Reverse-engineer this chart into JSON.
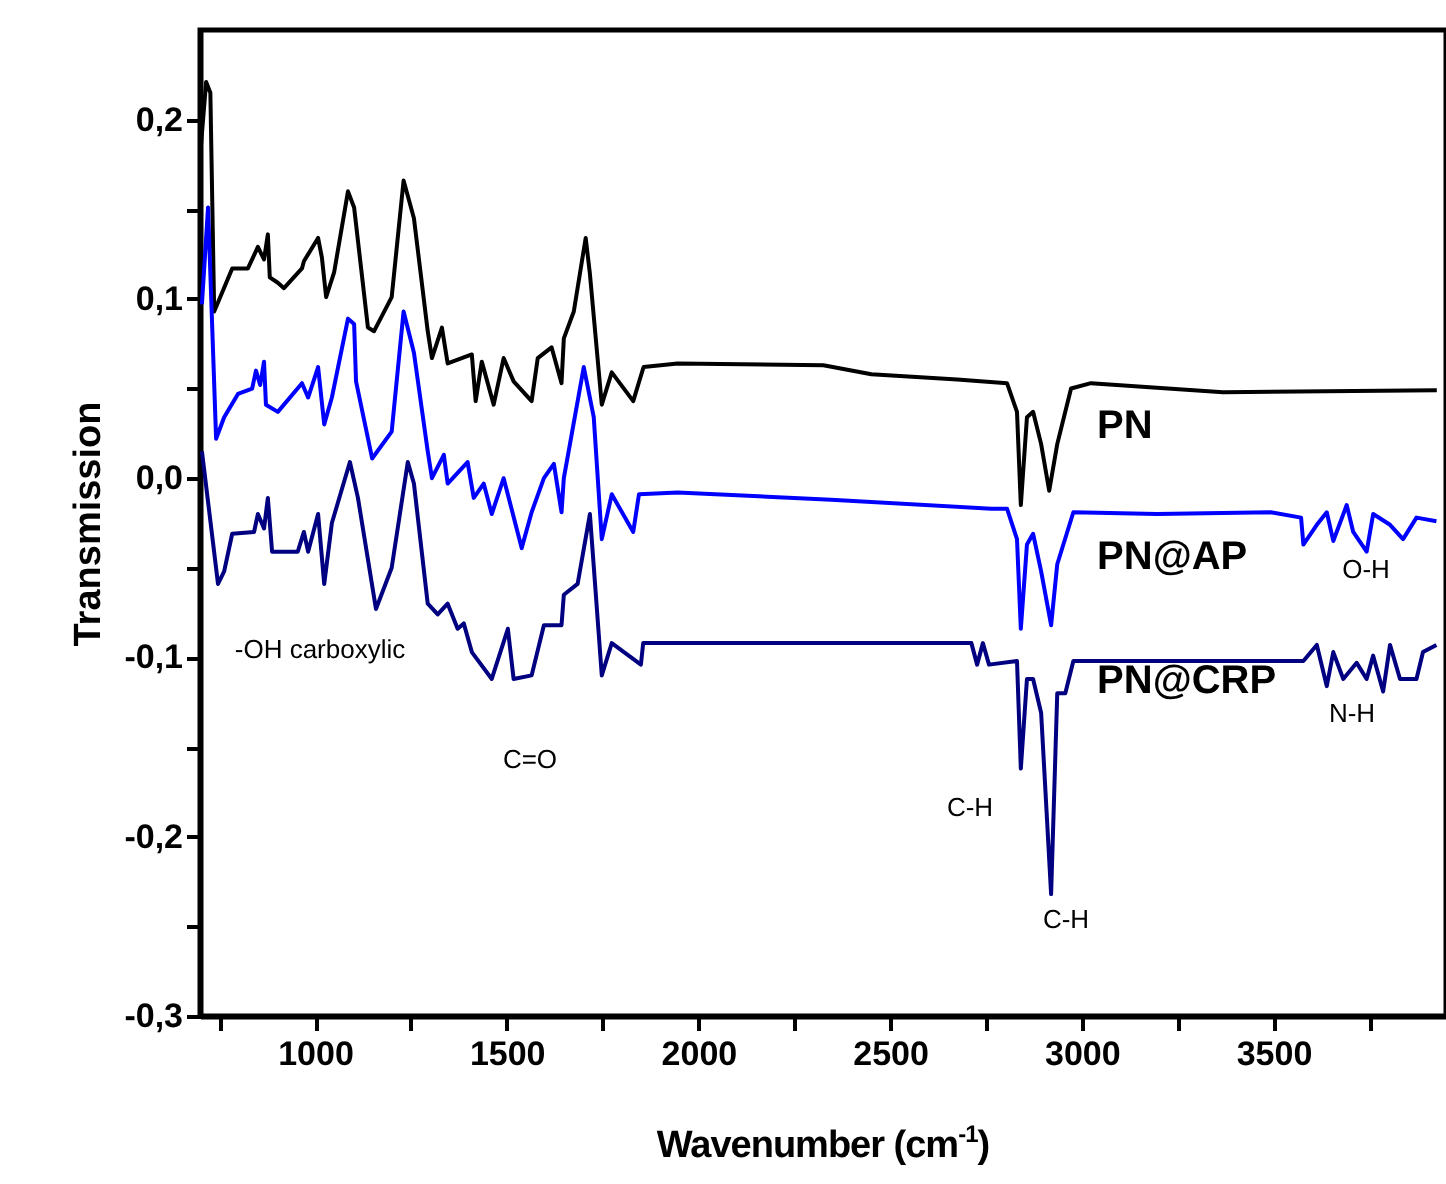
{
  "chart_data": {
    "type": "line",
    "xlabel": "Wavenumber (cm$^{-1}$)",
    "ylabel": "Transmission",
    "xlim": [
      700,
      3950
    ],
    "ylim": [
      -0.3,
      0.25
    ],
    "xticks": [
      {
        "value": 750,
        "label": null
      },
      1000,
      {
        "value": 1250,
        "label": null
      },
      1500,
      {
        "value": 1750,
        "label": null
      },
      2000,
      {
        "value": 2250,
        "label": null
      },
      2500,
      {
        "value": 2750,
        "label": null
      },
      3000,
      {
        "value": 3250,
        "label": null
      },
      3500,
      {
        "value": 3750,
        "label": null
      }
    ],
    "yticks": [
      {
        "value": -0.3,
        "label": "-0,3"
      },
      {
        "value": -0.25,
        "label": null
      },
      {
        "value": -0.2,
        "label": "-0,2"
      },
      {
        "value": -0.15,
        "label": null
      },
      {
        "value": -0.1,
        "label": "-0,1"
      },
      {
        "value": -0.05,
        "label": null
      },
      {
        "value": 0,
        "label": "0,0"
      },
      {
        "value": 0.05,
        "label": null
      },
      {
        "value": 0.1,
        "label": "0,1"
      },
      {
        "value": 0.15,
        "label": null
      },
      {
        "value": 0.2,
        "label": "0,2"
      }
    ],
    "series": [
      {
        "name": "PN",
        "color": "#000000",
        "x": [
          700,
          716,
          727,
          737,
          784,
          825,
          851,
          867,
          877,
          882,
          903,
          919,
          966,
          971,
          1008,
          1018,
          1029,
          1050,
          1086,
          1102,
          1138,
          1154,
          1200,
          1231,
          1258,
          1294,
          1305,
          1331,
          1346,
          1409,
          1419,
          1435,
          1466,
          1492,
          1518,
          1565,
          1581,
          1617,
          1643,
          1649,
          1675,
          1706,
          1717,
          1748,
          1774,
          1830,
          1857,
          1946,
          2326,
          2451,
          2675,
          2805,
          2831,
          2841,
          2857,
          2873,
          2894,
          2915,
          2936,
          2972,
          3024,
          3368,
          3926
        ],
        "values": [
          0.179,
          0.221,
          0.215,
          0.093,
          0.117,
          0.117,
          0.129,
          0.122,
          0.136,
          0.112,
          0.109,
          0.106,
          0.117,
          0.121,
          0.134,
          0.123,
          0.101,
          0.115,
          0.16,
          0.151,
          0.084,
          0.082,
          0.101,
          0.166,
          0.145,
          0.082,
          0.067,
          0.084,
          0.064,
          0.069,
          0.043,
          0.065,
          0.041,
          0.067,
          0.054,
          0.043,
          0.067,
          0.073,
          0.053,
          0.078,
          0.093,
          0.134,
          0.114,
          0.041,
          0.059,
          0.043,
          0.062,
          0.064,
          0.063,
          0.058,
          0.055,
          0.053,
          0.037,
          -0.015,
          0.034,
          0.037,
          0.019,
          -0.007,
          0.019,
          0.05,
          0.053,
          0.048,
          0.049
        ]
      },
      {
        "name": "PN@AP",
        "color": "#0000ff",
        "x": [
          705,
          721,
          742,
          763,
          799,
          836,
          846,
          857,
          867,
          872,
          903,
          966,
          982,
          1008,
          1024,
          1044,
          1086,
          1102,
          1107,
          1149,
          1200,
          1231,
          1258,
          1294,
          1305,
          1336,
          1346,
          1398,
          1414,
          1440,
          1461,
          1492,
          1539,
          1565,
          1597,
          1623,
          1643,
          1649,
          1701,
          1727,
          1748,
          1774,
          1830,
          1845,
          1946,
          2346,
          2764,
          2805,
          2831,
          2841,
          2857,
          2873,
          2894,
          2920,
          2936,
          2978,
          3196,
          3493,
          3572,
          3578,
          3613,
          3639,
          3656,
          3691,
          3708,
          3743,
          3760,
          3804,
          3838,
          3873,
          3925
        ],
        "values": [
          0.097,
          0.151,
          0.022,
          0.034,
          0.047,
          0.05,
          0.06,
          0.052,
          0.065,
          0.041,
          0.037,
          0.053,
          0.045,
          0.062,
          0.03,
          0.045,
          0.089,
          0.086,
          0.054,
          0.011,
          0.026,
          0.093,
          0.07,
          0.015,
          0.0,
          0.013,
          -0.003,
          0.009,
          -0.011,
          -0.003,
          -0.02,
          0.0,
          -0.039,
          -0.019,
          0.0,
          0.008,
          -0.019,
          0.0,
          0.062,
          0.034,
          -0.034,
          -0.009,
          -0.03,
          -0.009,
          -0.008,
          -0.012,
          -0.017,
          -0.017,
          -0.034,
          -0.084,
          -0.037,
          -0.031,
          -0.052,
          -0.082,
          -0.048,
          -0.019,
          -0.02,
          -0.019,
          -0.022,
          -0.037,
          -0.026,
          -0.019,
          -0.035,
          -0.015,
          -0.03,
          -0.041,
          -0.02,
          -0.026,
          -0.034,
          -0.022,
          -0.024
        ]
      },
      {
        "name": "PN@CRP",
        "color": "#000080",
        "x": [
          705,
          747,
          763,
          784,
          841,
          851,
          867,
          877,
          888,
          955,
          971,
          982,
          1008,
          1024,
          1044,
          1091,
          1112,
          1159,
          1200,
          1242,
          1258,
          1294,
          1320,
          1346,
          1372,
          1388,
          1409,
          1461,
          1503,
          1518,
          1565,
          1597,
          1643,
          1649,
          1685,
          1717,
          1748,
          1774,
          1850,
          1856,
          2712,
          2727,
          2742,
          2758,
          2831,
          2841,
          2857,
          2873,
          2894,
          2920,
          2936,
          2957,
          2978,
          3578,
          3613,
          3639,
          3656,
          3682,
          3717,
          3743,
          3760,
          3786,
          3804,
          3830,
          3873,
          3890,
          3925
        ],
        "values": [
          0.015,
          -0.059,
          -0.052,
          -0.031,
          -0.03,
          -0.02,
          -0.028,
          -0.011,
          -0.041,
          -0.041,
          -0.03,
          -0.041,
          -0.02,
          -0.059,
          -0.025,
          0.009,
          -0.011,
          -0.073,
          -0.05,
          0.009,
          -0.003,
          -0.07,
          -0.076,
          -0.07,
          -0.084,
          -0.081,
          -0.097,
          -0.112,
          -0.084,
          -0.112,
          -0.11,
          -0.082,
          -0.082,
          -0.065,
          -0.059,
          -0.02,
          -0.11,
          -0.092,
          -0.104,
          -0.092,
          -0.092,
          -0.104,
          -0.092,
          -0.104,
          -0.102,
          -0.162,
          -0.112,
          -0.112,
          -0.131,
          -0.232,
          -0.12,
          -0.12,
          -0.102,
          -0.102,
          -0.093,
          -0.116,
          -0.097,
          -0.112,
          -0.103,
          -0.112,
          -0.099,
          -0.119,
          -0.093,
          -0.112,
          -0.112,
          -0.097,
          -0.093
        ]
      }
    ],
    "annotations": [
      "-OH carboxylic",
      "C=O",
      "C-H",
      "C-H",
      "O-H",
      "N-H"
    ]
  }
}
